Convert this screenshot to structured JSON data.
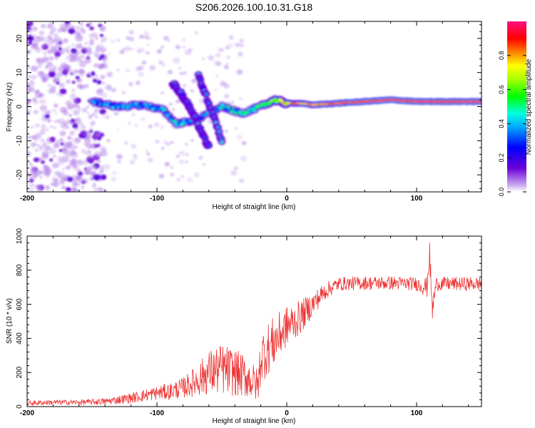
{
  "title": "S206.2026.100.10.31.G18",
  "colors": {
    "snr_line": "#ee3333",
    "axis": "#000000"
  },
  "chart_data": [
    {
      "type": "heatmap",
      "xlabel": "Height of straight line (km)",
      "ylabel": "Frequency (Hz)",
      "xlim": [
        -200,
        150
      ],
      "ylim": [
        -25,
        25
      ],
      "xticks": [
        -200,
        -100,
        0,
        100
      ],
      "yticks": [
        -20,
        -10,
        0,
        10,
        20
      ],
      "colorbar": {
        "label": "Normalized spectral amplitude",
        "range": [
          0,
          1
        ],
        "ticks": [
          0.0,
          0.2,
          0.4,
          0.6,
          0.8
        ],
        "tick_labels": [
          "0.0",
          "0.2",
          "0.4",
          "0.6",
          "0.8"
        ],
        "colormap": "rainbow (purple → blue → cyan → green → yellow → red → magenta)"
      },
      "features": [
        {
          "name": "main frequency track",
          "x": [
            -150,
            -130,
            -110,
            -95,
            -85,
            -70,
            -50,
            -35,
            -20,
            -10,
            0,
            10,
            20,
            40,
            60,
            80,
            100,
            120,
            150
          ],
          "y": [
            1.5,
            0,
            0.5,
            -1,
            -5,
            -4,
            0,
            -2,
            0,
            2,
            1,
            1,
            0.5,
            1,
            1.5,
            2,
            1.5,
            1.5,
            1.5
          ],
          "amplitude": [
            0.3,
            0.3,
            0.3,
            0.35,
            0.35,
            0.3,
            0.35,
            0.4,
            0.45,
            0.55,
            0.7,
            0.75,
            0.8,
            0.85,
            0.9,
            0.9,
            0.9,
            0.9,
            0.9
          ]
        },
        {
          "name": "descending branch 1",
          "x": [
            -88,
            -80,
            -72,
            -65,
            -60
          ],
          "y": [
            7,
            3,
            -2,
            -8,
            -12
          ],
          "amplitude": 0.35
        },
        {
          "name": "descending branch 2",
          "x": [
            -68,
            -62,
            -56,
            -50
          ],
          "y": [
            9,
            3,
            -3,
            -10
          ],
          "amplitude": 0.35
        },
        {
          "name": "scatter region",
          "x_range": [
            -200,
            -140
          ],
          "y_range": [
            -25,
            25
          ],
          "amplitude": 0.15
        }
      ]
    },
    {
      "type": "line",
      "xlabel": "Height of straight line (km)",
      "ylabel": "SNR (10 * v/v)",
      "xlim": [
        -200,
        150
      ],
      "ylim": [
        0,
        1000
      ],
      "xticks": [
        -200,
        -100,
        0,
        100
      ],
      "yticks": [
        0,
        200,
        400,
        600,
        800,
        1000
      ],
      "series": [
        {
          "name": "SNR",
          "x": [
            -200,
            -180,
            -160,
            -140,
            -120,
            -100,
            -90,
            -80,
            -70,
            -60,
            -50,
            -40,
            -30,
            -22,
            -20,
            -10,
            0,
            10,
            20,
            30,
            40,
            60,
            80,
            100,
            108,
            110,
            112,
            115,
            130,
            150
          ],
          "y": [
            20,
            25,
            25,
            30,
            50,
            80,
            90,
            110,
            150,
            200,
            220,
            200,
            170,
            120,
            290,
            380,
            470,
            520,
            600,
            680,
            720,
            725,
            725,
            720,
            700,
            900,
            560,
            720,
            720,
            720
          ],
          "noise": [
            15,
            15,
            15,
            20,
            30,
            40,
            50,
            60,
            90,
            130,
            150,
            140,
            120,
            100,
            160,
            150,
            120,
            100,
            70,
            50,
            40,
            40,
            40,
            40,
            60,
            80,
            80,
            40,
            40,
            40
          ]
        }
      ]
    }
  ]
}
